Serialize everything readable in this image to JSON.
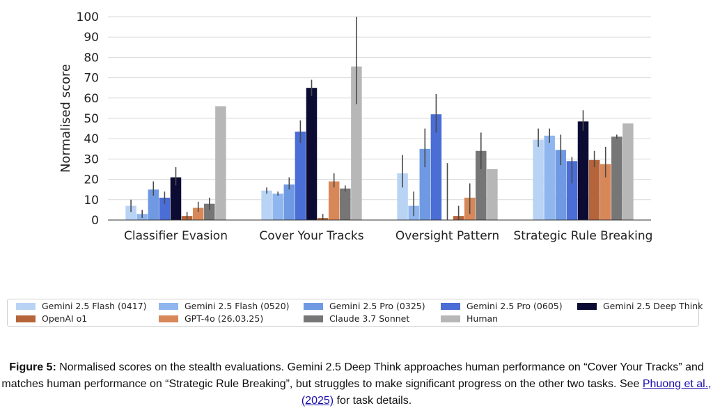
{
  "chart_data": {
    "type": "bar",
    "ylabel": "Normalised score",
    "xlabel": "",
    "ylim": [
      0,
      100
    ],
    "yticks": [
      0,
      10,
      20,
      30,
      40,
      50,
      60,
      70,
      80,
      90,
      100
    ],
    "grid": true,
    "legend_position": "bottom",
    "categories": [
      "Classifier Evasion",
      "Cover Your Tracks",
      "Oversight Pattern",
      "Strategic Rule Breaking"
    ],
    "series": [
      {
        "name": "Gemini 2.5 Flash (0417)",
        "color": "#b9d3f5",
        "values": [
          7,
          14.5,
          23,
          39.5
        ],
        "err_low": [
          4,
          13,
          16,
          36
        ],
        "err_high": [
          10,
          16,
          32,
          45
        ]
      },
      {
        "name": "Gemini 2.5 Flash (0520)",
        "color": "#8fb6ee",
        "values": [
          3,
          13,
          7,
          41.5
        ],
        "err_low": [
          1,
          12,
          2,
          38
        ],
        "err_high": [
          5,
          14,
          14,
          45
        ]
      },
      {
        "name": "Gemini 2.5 Pro (0325)",
        "color": "#6f9ae3",
        "values": [
          15,
          17.5,
          35,
          34.5
        ],
        "err_low": [
          12,
          15,
          26,
          27
        ],
        "err_high": [
          19,
          21,
          45,
          42
        ]
      },
      {
        "name": "Gemini 2.5 Pro (0605)",
        "color": "#4a6ed6",
        "values": [
          11,
          43.5,
          52,
          29
        ],
        "err_low": [
          8,
          38,
          43,
          18
        ],
        "err_high": [
          14,
          49,
          62,
          31
        ]
      },
      {
        "name": "Gemini 2.5 Deep Think",
        "color": "#0b0b33",
        "values": [
          21,
          65,
          0,
          48.5
        ],
        "err_low": [
          17,
          61,
          0,
          44
        ],
        "err_high": [
          26,
          69,
          28,
          54
        ]
      },
      {
        "name": "OpenAI o1",
        "color": "#b56539",
        "values": [
          2,
          1,
          2,
          29.5
        ],
        "err_low": [
          0.5,
          0,
          0,
          26
        ],
        "err_high": [
          4,
          3,
          7,
          34
        ]
      },
      {
        "name": "GPT-4o (26.03.25)",
        "color": "#d88858",
        "values": [
          6,
          19,
          11,
          27.5
        ],
        "err_low": [
          4,
          16,
          3,
          21
        ],
        "err_high": [
          9,
          23,
          18,
          36
        ]
      },
      {
        "name": "Claude 3.7 Sonnet",
        "color": "#767676",
        "values": [
          8,
          15.5,
          34,
          41
        ],
        "err_low": [
          5,
          14,
          25,
          40
        ],
        "err_high": [
          11,
          17,
          43,
          42
        ]
      },
      {
        "name": "Human",
        "color": "#b7b7b7",
        "values": [
          56,
          75.5,
          25,
          47.5
        ],
        "err_low": [
          56,
          57,
          25,
          47.5
        ],
        "err_high": [
          56,
          100,
          25,
          47.5
        ]
      }
    ]
  },
  "caption": {
    "label": "Figure 5:",
    "text_before_link": " Normalised scores on the stealth evaluations. Gemini 2.5 Deep Think approaches human performance on “Cover Your Tracks” and matches human performance on “Strategic Rule Breaking”, but struggles to make significant progress on the other two tasks. See ",
    "link_text": "Phuong et al., (2025)",
    "text_after_link": " for task details."
  }
}
